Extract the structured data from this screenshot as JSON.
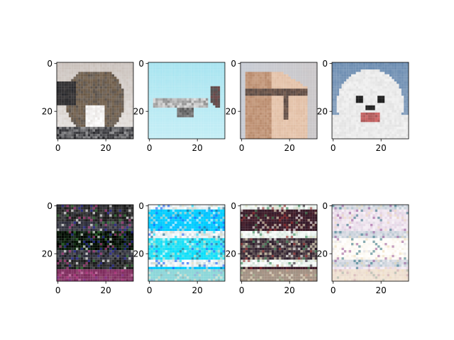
{
  "figure": {
    "layout": "2x4 grid of image axes",
    "background": "#ffffff"
  },
  "chart_data": [
    {
      "type": "heatmap",
      "row": 1,
      "col": 1,
      "image_content": "photo of a tabby cat (32x32)",
      "palette": [
        "#3d3a3a",
        "#6b5a48",
        "#a4907a",
        "#ffffff",
        "#cfc8c4",
        "#2a2a2e"
      ],
      "xticks": [
        "0",
        "20"
      ],
      "yticks": [
        "0",
        "20"
      ],
      "xlim": [
        0,
        31
      ],
      "ylim": [
        31,
        0
      ]
    },
    {
      "type": "heatmap",
      "row": 1,
      "col": 2,
      "image_content": "photo of an airplane on light blue sky (32x32)",
      "palette": [
        "#a8e4f0",
        "#c4eef6",
        "#555555",
        "#8a3a3a",
        "#dddddd"
      ],
      "xticks": [
        "0",
        "20"
      ],
      "yticks": [
        "0",
        "20"
      ],
      "xlim": [
        0,
        31
      ],
      "ylim": [
        31,
        0
      ]
    },
    {
      "type": "heatmap",
      "row": 1,
      "col": 3,
      "image_content": "photo of a horse head (32x32)",
      "palette": [
        "#c8ccd4",
        "#b88a6c",
        "#e8c8b0",
        "#5a4a44",
        "#d9b49a"
      ],
      "xticks": [
        "0",
        "20"
      ],
      "yticks": [
        "0",
        "20"
      ],
      "xlim": [
        0,
        31
      ],
      "ylim": [
        31,
        0
      ]
    },
    {
      "type": "heatmap",
      "row": 1,
      "col": 4,
      "image_content": "photo of a white dog (32x32)",
      "palette": [
        "#6a8bb0",
        "#f2f2f2",
        "#d9d9d9",
        "#222222",
        "#d26a6a"
      ],
      "xticks": [
        "0",
        "20"
      ],
      "yticks": [
        "0",
        "20"
      ],
      "xlim": [
        0,
        31
      ],
      "ylim": [
        31,
        0
      ]
    },
    {
      "type": "heatmap",
      "row": 2,
      "col": 1,
      "image_content": "noisy generated image, dark horizontal bands",
      "palette": [
        "#000000",
        "#2a2a3a",
        "#ffffff",
        "#e0e8c0",
        "#3a8a3a",
        "#2a2ab0",
        "#c03a8a"
      ],
      "xticks": [
        "0",
        "20"
      ],
      "yticks": [
        "0",
        "20"
      ],
      "xlim": [
        0,
        31
      ],
      "ylim": [
        31,
        0
      ]
    },
    {
      "type": "heatmap",
      "row": 2,
      "col": 2,
      "image_content": "noisy generated image, cyan/blue banded",
      "palette": [
        "#00e0ff",
        "#ffffff",
        "#2060ff",
        "#1a6a8a",
        "#e8e0c0"
      ],
      "xticks": [
        "0",
        "20"
      ],
      "yticks": [
        "0",
        "20"
      ],
      "xlim": [
        0,
        31
      ],
      "ylim": [
        31,
        0
      ]
    },
    {
      "type": "heatmap",
      "row": 2,
      "col": 3,
      "image_content": "noisy generated image, dark/red banded",
      "palette": [
        "#2a1a2a",
        "#ffffff",
        "#a03030",
        "#3a8a5a",
        "#e8e0c0"
      ],
      "xticks": [
        "0",
        "20"
      ],
      "yticks": [
        "0",
        "20"
      ],
      "xlim": [
        0,
        31
      ],
      "ylim": [
        31,
        0
      ]
    },
    {
      "type": "heatmap",
      "row": 2,
      "col": 4,
      "image_content": "noisy generated image, pastel banded",
      "palette": [
        "#ffffff",
        "#e0e0e8",
        "#a060a0",
        "#3a7a8a",
        "#f0e0c0"
      ],
      "xticks": [
        "0",
        "20"
      ],
      "yticks": [
        "0",
        "20"
      ],
      "xlim": [
        0,
        31
      ],
      "ylim": [
        31,
        0
      ]
    }
  ]
}
